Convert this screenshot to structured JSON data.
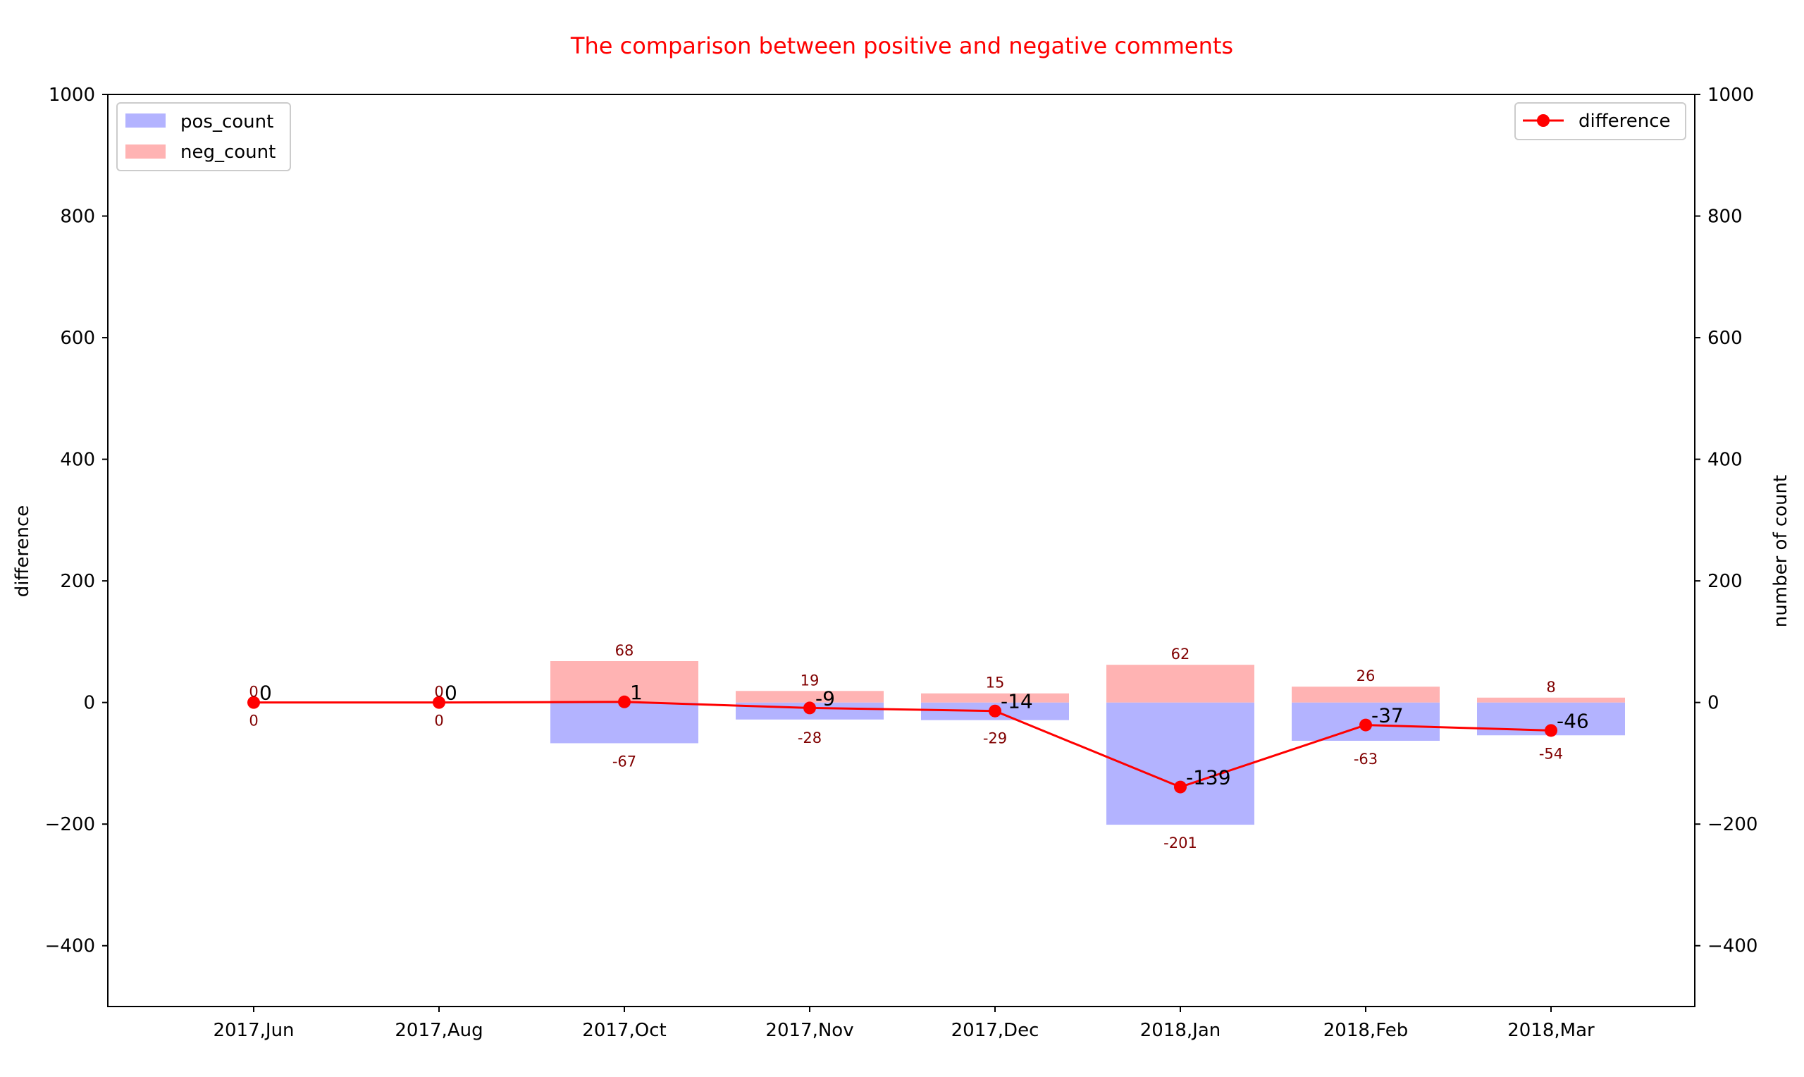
{
  "chart_data": {
    "type": "bar",
    "title": "The comparison between positive and negative comments",
    "title_color": "#ff0000",
    "ylabel_left": "difference",
    "ylabel_right": "number of count",
    "ylim": [
      -500,
      1000
    ],
    "yticks": [
      -400,
      -200,
      0,
      200,
      400,
      600,
      800,
      1000
    ],
    "ytick_labels": [
      "−400",
      "−200",
      "0",
      "200",
      "400",
      "600",
      "800",
      "1000"
    ],
    "categories": [
      "2017,Jun",
      "2017,Aug",
      "2017,Oct",
      "2017,Nov",
      "2017,Dec",
      "2018,Jan",
      "2018,Feb",
      "2018,Mar"
    ],
    "series": [
      {
        "name": "pos_count",
        "type": "bar",
        "color": "#b3b3ff",
        "values": [
          0,
          0,
          -67,
          -28,
          -29,
          -201,
          -63,
          -54
        ]
      },
      {
        "name": "neg_count",
        "type": "bar",
        "color": "#ffb3b3",
        "values": [
          0,
          0,
          68,
          19,
          15,
          62,
          26,
          8
        ]
      },
      {
        "name": "difference",
        "type": "line",
        "color": "#ff0000",
        "values": [
          0,
          0,
          1,
          -9,
          -14,
          -139,
          -37,
          -46
        ]
      }
    ],
    "bar_label_color": "#800000",
    "legend_left": [
      "pos_count",
      "neg_count"
    ],
    "legend_right": [
      "difference"
    ],
    "grid": false
  }
}
